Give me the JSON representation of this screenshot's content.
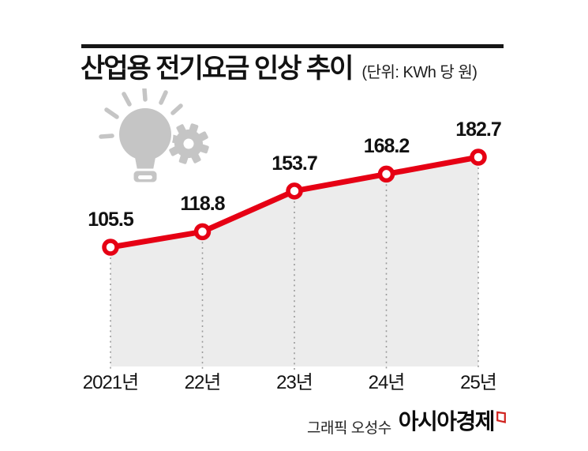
{
  "meta": {
    "background": "#ffffff",
    "accent_red": "#e60014",
    "area_fill": "#ececec",
    "dash_gray": "#9a9a9a",
    "icon_gray": "#c5c5c5",
    "text_black": "#111111"
  },
  "header": {
    "title": "산업용 전기요금 인상 추이",
    "unit_label": "(단위: KWh 당 원)"
  },
  "chart_data": {
    "type": "line",
    "title": "산업용 전기요금 인상 추이",
    "unit": "KWh 당 원",
    "categories": [
      "2021년",
      "22년",
      "23년",
      "24년",
      "25년"
    ],
    "values": [
      105.5,
      118.8,
      153.7,
      168.2,
      182.7
    ],
    "series": [
      {
        "name": "산업용 전기요금",
        "values": [
          105.5,
          118.8,
          153.7,
          168.2,
          182.7
        ]
      }
    ],
    "line_color": "#e60014",
    "marker": "open-circle",
    "area_under_line": true,
    "grid": false,
    "data_labels": true,
    "legend": "none",
    "y_axis": "hidden"
  },
  "icons": {
    "decoration": "lightbulb-gear-icon",
    "brand_mark": "red-flag-icon"
  },
  "footer": {
    "credit": "그래픽 오성수",
    "brand": "아시아경제"
  }
}
